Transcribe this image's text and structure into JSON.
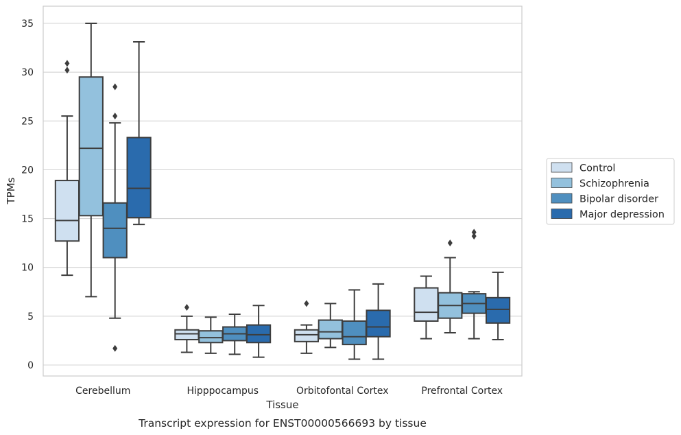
{
  "chart_data": {
    "type": "box",
    "title": "",
    "caption": "Transcript expression for ENST00000566693 by tissue",
    "xlabel": "Tissue",
    "ylabel": "TPMs",
    "ylim": [
      -1,
      36.8
    ],
    "yticks": [
      0,
      5,
      10,
      15,
      20,
      25,
      30,
      35
    ],
    "grid": true,
    "legend_position": "right",
    "categories": [
      "Cerebellum",
      "Hipppocampus",
      "Orbitofontal Cortex",
      "Prefrontal Cortex"
    ],
    "series": [
      {
        "name": "Control",
        "color": "#cfe0f0",
        "boxes": [
          {
            "whisker_low": 9.2,
            "q1": 12.7,
            "median": 14.8,
            "q3": 18.9,
            "whisker_high": 25.5,
            "outliers": [
              30.2,
              30.9
            ]
          },
          {
            "whisker_low": 1.3,
            "q1": 2.6,
            "median": 3.2,
            "q3": 3.6,
            "whisker_high": 5.0,
            "outliers": [
              5.9
            ]
          },
          {
            "whisker_low": 1.2,
            "q1": 2.4,
            "median": 3.1,
            "q3": 3.6,
            "whisker_high": 4.1,
            "outliers": [
              6.3
            ]
          },
          {
            "whisker_low": 2.7,
            "q1": 4.5,
            "median": 5.4,
            "q3": 7.9,
            "whisker_high": 9.1,
            "outliers": []
          }
        ]
      },
      {
        "name": "Schizophrenia",
        "color": "#93c1dd",
        "boxes": [
          {
            "whisker_low": 7.0,
            "q1": 15.3,
            "median": 22.2,
            "q3": 29.5,
            "whisker_high": 35.0,
            "outliers": []
          },
          {
            "whisker_low": 1.2,
            "q1": 2.3,
            "median": 2.8,
            "q3": 3.5,
            "whisker_high": 4.9,
            "outliers": []
          },
          {
            "whisker_low": 1.8,
            "q1": 2.7,
            "median": 3.4,
            "q3": 4.6,
            "whisker_high": 6.3,
            "outliers": []
          },
          {
            "whisker_low": 3.3,
            "q1": 4.8,
            "median": 6.1,
            "q3": 7.4,
            "whisker_high": 11.0,
            "outliers": [
              12.5
            ]
          }
        ]
      },
      {
        "name": "Bipolar disorder",
        "color": "#4f8fbf",
        "boxes": [
          {
            "whisker_low": 4.8,
            "q1": 11.0,
            "median": 14.0,
            "q3": 16.6,
            "whisker_high": 24.8,
            "outliers": [
              25.5,
              28.5,
              1.7
            ]
          },
          {
            "whisker_low": 1.1,
            "q1": 2.5,
            "median": 3.2,
            "q3": 3.9,
            "whisker_high": 5.2,
            "outliers": []
          },
          {
            "whisker_low": 0.6,
            "q1": 2.1,
            "median": 2.9,
            "q3": 4.5,
            "whisker_high": 7.7,
            "outliers": []
          },
          {
            "whisker_low": 2.7,
            "q1": 5.3,
            "median": 6.3,
            "q3": 7.3,
            "whisker_high": 7.5,
            "outliers": [
              13.2,
              13.6
            ]
          }
        ]
      },
      {
        "name": "Major depression",
        "color": "#2a6bad",
        "boxes": [
          {
            "whisker_low": 14.4,
            "q1": 15.1,
            "median": 18.1,
            "q3": 23.3,
            "whisker_high": 33.1,
            "outliers": []
          },
          {
            "whisker_low": 0.8,
            "q1": 2.3,
            "median": 3.1,
            "q3": 4.1,
            "whisker_high": 6.1,
            "outliers": []
          },
          {
            "whisker_low": 0.6,
            "q1": 2.9,
            "median": 3.9,
            "q3": 5.6,
            "whisker_high": 8.3,
            "outliers": []
          },
          {
            "whisker_low": 2.6,
            "q1": 4.3,
            "median": 5.7,
            "q3": 6.9,
            "whisker_high": 9.5,
            "outliers": []
          }
        ]
      }
    ]
  }
}
